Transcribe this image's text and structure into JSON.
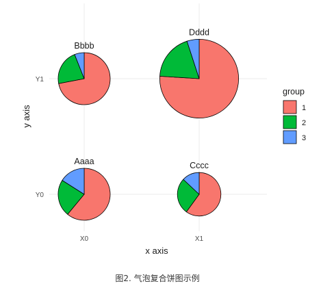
{
  "chart_data": {
    "type": "pie",
    "subtype": "bubble-pie",
    "xlabel": "x axis",
    "ylabel": "y axis",
    "x_categories": [
      "X0",
      "X1"
    ],
    "y_categories": [
      "Y0",
      "Y1"
    ],
    "grid": true,
    "legend": {
      "title": "group",
      "position": "right",
      "entries": [
        "1",
        "2",
        "3"
      ]
    },
    "colors": {
      "1": "#F8766D",
      "2": "#00BA38",
      "3": "#619CFF"
    },
    "pies": [
      {
        "label": "Aaaa",
        "x": "X0",
        "y": "Y0",
        "size": 1.0,
        "values": {
          "1": 0.61,
          "2": 0.23,
          "3": 0.16
        }
      },
      {
        "label": "Bbbb",
        "x": "X0",
        "y": "Y1",
        "size": 1.0,
        "values": {
          "1": 0.72,
          "2": 0.22,
          "3": 0.06
        }
      },
      {
        "label": "Cccc",
        "x": "X1",
        "y": "Y0",
        "size": 0.7,
        "values": {
          "1": 0.6,
          "2": 0.27,
          "3": 0.13
        }
      },
      {
        "label": "Dddd",
        "x": "X1",
        "y": "Y1",
        "size": 2.3,
        "values": {
          "1": 0.76,
          "2": 0.19,
          "3": 0.05
        }
      }
    ]
  },
  "caption": "图2. 气泡复合饼图示例"
}
